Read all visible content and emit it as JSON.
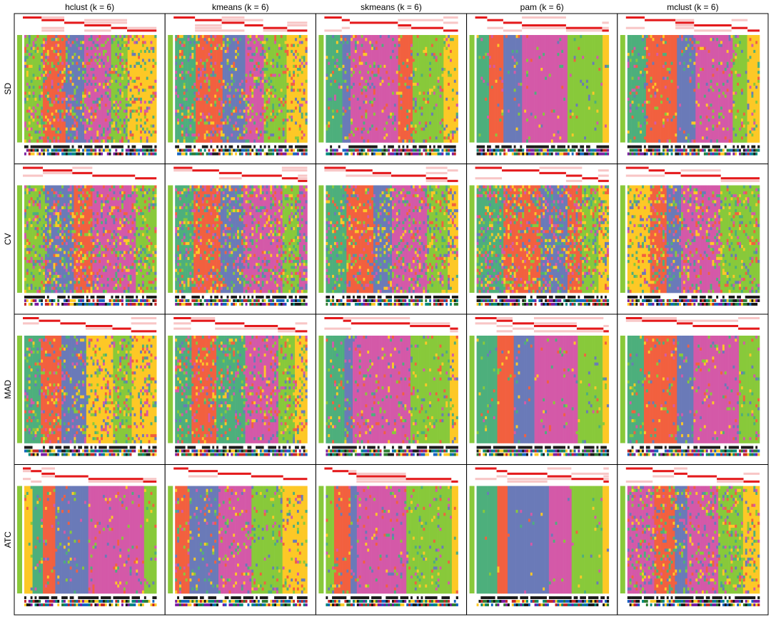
{
  "chart_data": {
    "type": "heatmap",
    "title": "",
    "column_labels": [
      "hclust (k = 6)",
      "kmeans (k = 6)",
      "skmeans (k = 6)",
      "pam (k = 6)",
      "mclust (k = 6)"
    ],
    "row_labels": [
      "SD",
      "CV",
      "MAD",
      "ATC"
    ],
    "class_colors": {
      "1": "#4daf7c",
      "2": "#f2603f",
      "3": "#6a7ab8",
      "4": "#d459a8",
      "5": "#88c93a",
      "6": "#fdc826"
    },
    "membership_color": "#e41a1c",
    "cells": [
      {
        "method": "hclust",
        "top_value": "SD",
        "class_order": [
          5,
          2,
          3,
          4,
          5,
          6
        ],
        "class_widths": [
          0.14,
          0.17,
          0.15,
          0.2,
          0.12,
          0.22
        ],
        "noise": 0.34
      },
      {
        "method": "kmeans",
        "top_value": "SD",
        "class_order": [
          1,
          2,
          3,
          4,
          5,
          6
        ],
        "class_widths": [
          0.16,
          0.2,
          0.17,
          0.14,
          0.18,
          0.15
        ],
        "noise": 0.3
      },
      {
        "method": "skmeans",
        "top_value": "SD",
        "class_order": [
          1,
          3,
          4,
          2,
          5,
          6
        ],
        "class_widths": [
          0.13,
          0.06,
          0.36,
          0.1,
          0.24,
          0.11
        ],
        "noise": 0.18
      },
      {
        "method": "pam",
        "top_value": "SD",
        "class_order": [
          1,
          2,
          3,
          4,
          5,
          6
        ],
        "class_widths": [
          0.09,
          0.12,
          0.14,
          0.33,
          0.27,
          0.05
        ],
        "noise": 0.06
      },
      {
        "method": "mclust",
        "top_value": "SD",
        "class_order": [
          1,
          2,
          3,
          4,
          5,
          6
        ],
        "class_widths": [
          0.14,
          0.23,
          0.14,
          0.28,
          0.12,
          0.09
        ],
        "noise": 0.16
      },
      {
        "method": "hclust",
        "top_value": "CV",
        "class_order": [
          5,
          3,
          2,
          4,
          5
        ],
        "class_widths": [
          0.15,
          0.22,
          0.15,
          0.32,
          0.16
        ],
        "noise": 0.4
      },
      {
        "method": "kmeans",
        "top_value": "CV",
        "class_order": [
          1,
          2,
          3,
          4,
          5,
          4
        ],
        "class_widths": [
          0.14,
          0.2,
          0.17,
          0.3,
          0.12,
          0.07
        ],
        "noise": 0.38
      },
      {
        "method": "skmeans",
        "top_value": "CV",
        "class_order": [
          1,
          2,
          3,
          4,
          5,
          6
        ],
        "class_widths": [
          0.16,
          0.2,
          0.14,
          0.26,
          0.16,
          0.08
        ],
        "noise": 0.34
      },
      {
        "method": "pam",
        "top_value": "CV",
        "class_order": [
          1,
          2,
          3,
          2,
          5,
          6
        ],
        "class_widths": [
          0.2,
          0.28,
          0.2,
          0.12,
          0.12,
          0.08
        ],
        "noise": 0.42
      },
      {
        "method": "mclust",
        "top_value": "CV",
        "class_order": [
          6,
          2,
          3,
          4,
          5
        ],
        "class_widths": [
          0.17,
          0.12,
          0.12,
          0.3,
          0.29
        ],
        "noise": 0.28
      },
      {
        "method": "hclust",
        "top_value": "MAD",
        "class_order": [
          1,
          2,
          3,
          6,
          5,
          6
        ],
        "class_widths": [
          0.12,
          0.16,
          0.19,
          0.2,
          0.14,
          0.19
        ],
        "noise": 0.3
      },
      {
        "method": "kmeans",
        "top_value": "MAD",
        "class_order": [
          1,
          2,
          1,
          4,
          5,
          6
        ],
        "class_widths": [
          0.13,
          0.18,
          0.22,
          0.25,
          0.13,
          0.09
        ],
        "noise": 0.3
      },
      {
        "method": "skmeans",
        "top_value": "MAD",
        "class_order": [
          1,
          3,
          4,
          5,
          6
        ],
        "class_widths": [
          0.14,
          0.06,
          0.44,
          0.3,
          0.06
        ],
        "noise": 0.14
      },
      {
        "method": "pam",
        "top_value": "MAD",
        "class_order": [
          1,
          2,
          3,
          4,
          5,
          6
        ],
        "class_widths": [
          0.16,
          0.12,
          0.16,
          0.32,
          0.2,
          0.04
        ],
        "noise": 0.05
      },
      {
        "method": "mclust",
        "top_value": "MAD",
        "class_order": [
          1,
          2,
          3,
          4,
          5
        ],
        "class_widths": [
          0.12,
          0.26,
          0.12,
          0.34,
          0.16
        ],
        "noise": 0.12
      },
      {
        "method": "hclust",
        "top_value": "ATC",
        "class_order": [
          6,
          1,
          2,
          3,
          4,
          5
        ],
        "class_widths": [
          0.06,
          0.08,
          0.1,
          0.25,
          0.41,
          0.1
        ],
        "noise": 0.1
      },
      {
        "method": "kmeans",
        "top_value": "ATC",
        "class_order": [
          2,
          3,
          4,
          5,
          6
        ],
        "class_widths": [
          0.11,
          0.22,
          0.25,
          0.24,
          0.18
        ],
        "noise": 0.18
      },
      {
        "method": "skmeans",
        "top_value": "ATC",
        "class_order": [
          5,
          2,
          3,
          4,
          5,
          6
        ],
        "class_widths": [
          0.06,
          0.12,
          0.06,
          0.37,
          0.34,
          0.05
        ],
        "noise": 0.12
      },
      {
        "method": "pam",
        "top_value": "ATC",
        "class_order": [
          1,
          2,
          3,
          4,
          5,
          6
        ],
        "class_widths": [
          0.16,
          0.08,
          0.3,
          0.18,
          0.24,
          0.04
        ],
        "noise": 0.02
      },
      {
        "method": "mclust",
        "top_value": "ATC",
        "class_order": [
          4,
          2,
          3,
          4,
          5,
          6
        ],
        "class_widths": [
          0.2,
          0.16,
          0.1,
          0.22,
          0.2,
          0.12
        ],
        "noise": 0.3
      }
    ]
  }
}
